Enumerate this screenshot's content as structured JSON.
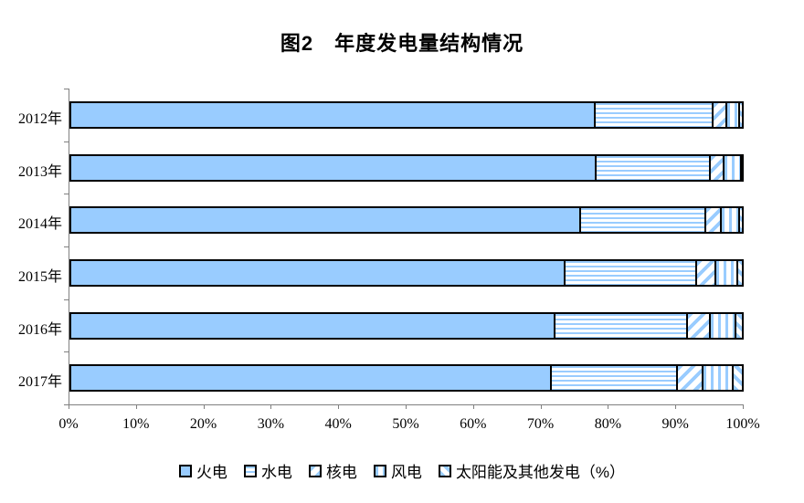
{
  "chart_data": {
    "type": "bar",
    "orientation": "horizontal",
    "stacked": true,
    "title": "图2　年度发电量结构情况",
    "categories": [
      "2012年",
      "2013年",
      "2014年",
      "2015年",
      "2016年",
      "2017年"
    ],
    "series": [
      {
        "name": "火电",
        "pattern": "solid",
        "values": [
          78.1,
          78.2,
          75.9,
          73.6,
          72.1,
          71.5
        ]
      },
      {
        "name": "水电",
        "pattern": "horizontal-stripes",
        "values": [
          17.4,
          16.9,
          18.6,
          19.5,
          19.6,
          18.7
        ]
      },
      {
        "name": "核电",
        "pattern": "diagonal-stripes-down",
        "values": [
          2.0,
          2.1,
          2.3,
          2.9,
          3.4,
          3.8
        ]
      },
      {
        "name": "风电",
        "pattern": "vertical-stripes",
        "values": [
          2.0,
          2.5,
          2.7,
          3.2,
          3.8,
          4.5
        ]
      },
      {
        "name": "太阳能及其他发电（%）",
        "pattern": "diagonal-stripes-up",
        "values": [
          0.5,
          0.3,
          0.5,
          0.8,
          1.1,
          1.5
        ]
      }
    ],
    "x_ticks": [
      "0%",
      "10%",
      "20%",
      "30%",
      "40%",
      "50%",
      "60%",
      "70%",
      "80%",
      "90%",
      "100%"
    ],
    "xlim": [
      0,
      100
    ],
    "xlabel": "",
    "ylabel": "",
    "legend_position": "bottom",
    "grid": false,
    "bar_color": "#99CCFF",
    "bar_border_color": "#000000",
    "axis_color": "#808080"
  }
}
